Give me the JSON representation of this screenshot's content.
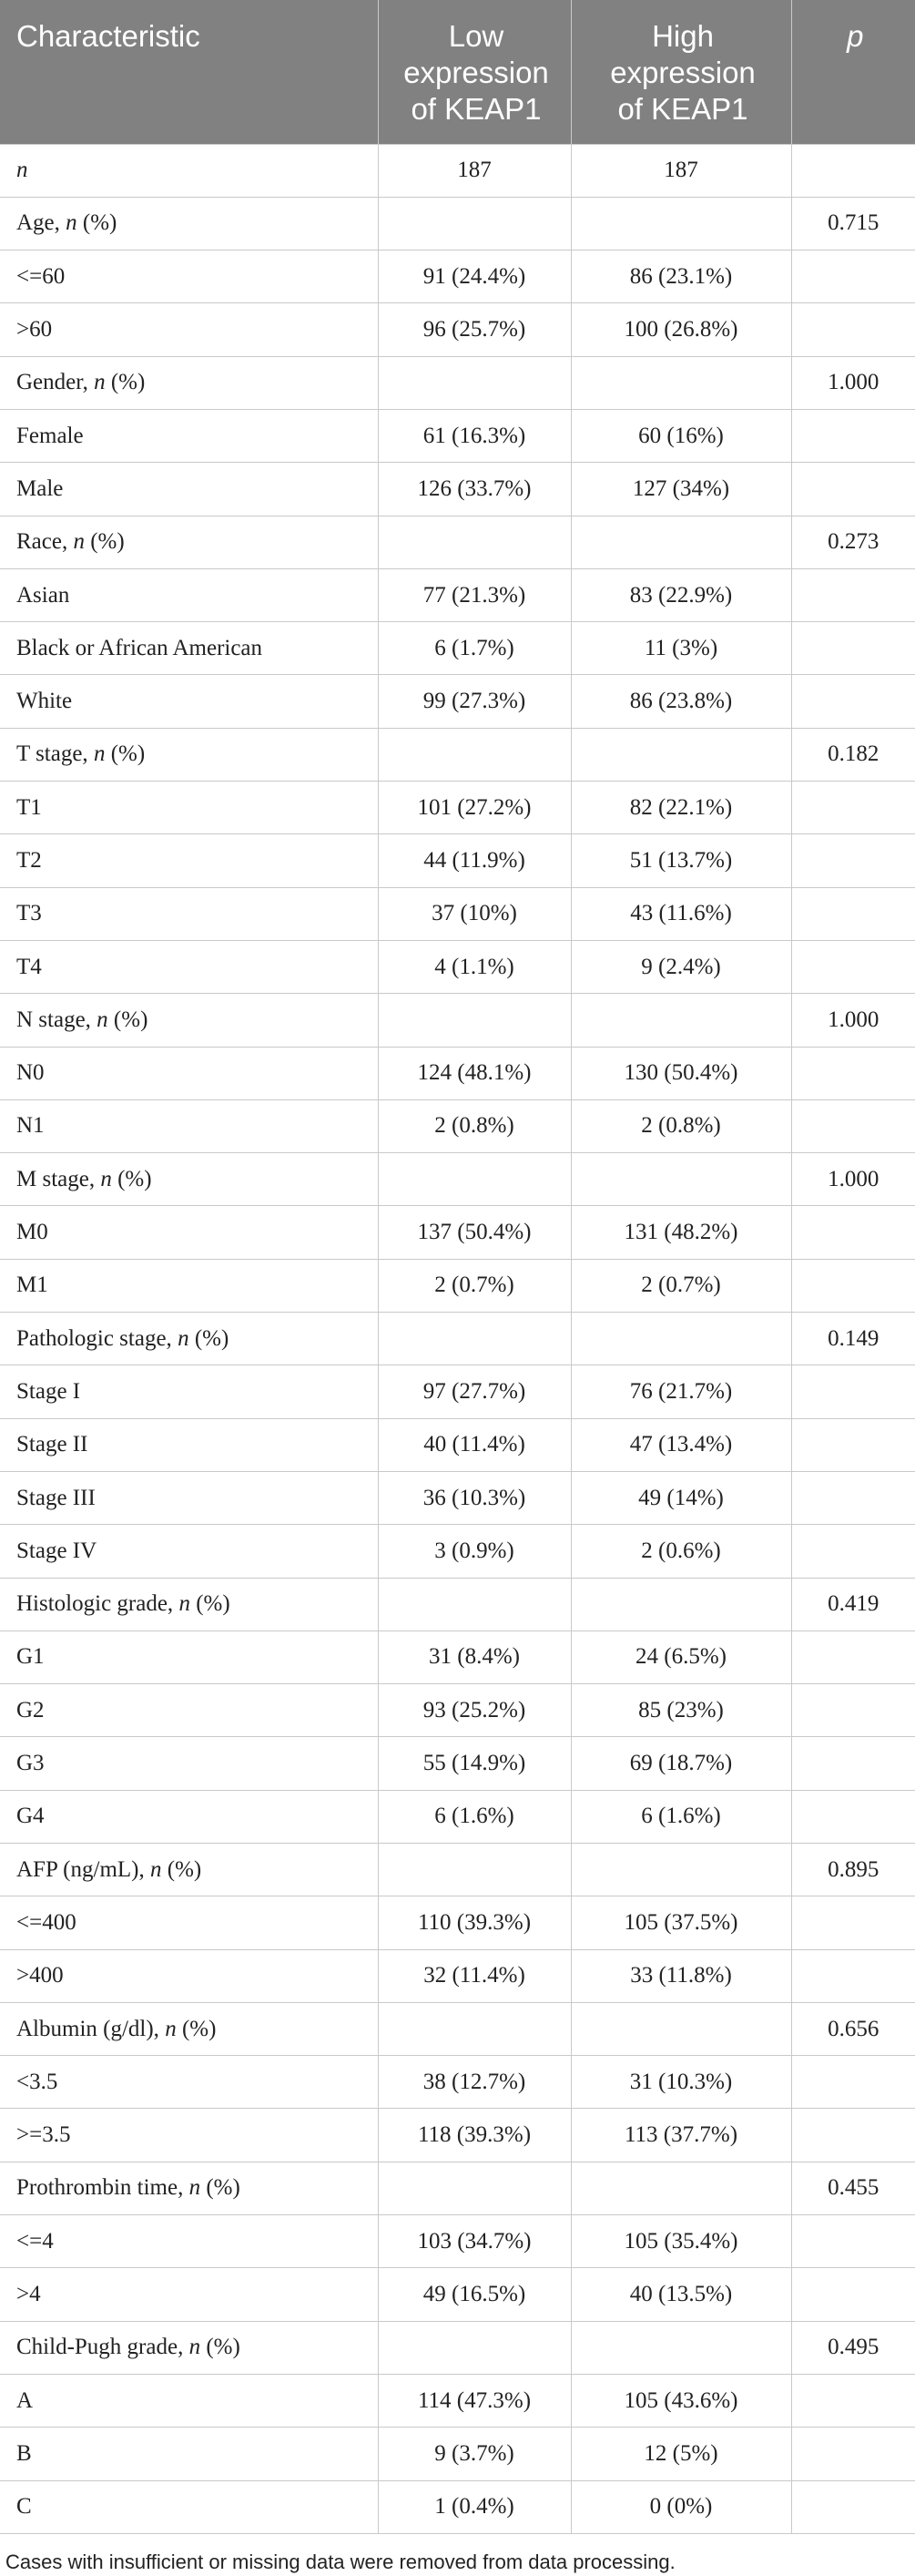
{
  "table": {
    "headers": [
      {
        "line1": "Characteristic",
        "line2": "",
        "line3": ""
      },
      {
        "line1": "Low",
        "line2": "expression",
        "line3": "of KEAP1"
      },
      {
        "line1": "High",
        "line2": "expression",
        "line3": "of KEAP1"
      },
      {
        "line1": "p",
        "line2": "",
        "line3": ""
      }
    ],
    "rows": [
      {
        "label": "",
        "label_italic": "n",
        "label_suffix": "",
        "low": "187",
        "high": "187",
        "p": ""
      },
      {
        "label": "Age, ",
        "label_italic": "n",
        "label_suffix": " (%)",
        "low": "",
        "high": "",
        "p": "0.715"
      },
      {
        "label": "<=60",
        "label_italic": "",
        "label_suffix": "",
        "low": "91 (24.4%)",
        "high": "86 (23.1%)",
        "p": ""
      },
      {
        "label": ">60",
        "label_italic": "",
        "label_suffix": "",
        "low": "96 (25.7%)",
        "high": "100 (26.8%)",
        "p": ""
      },
      {
        "label": "Gender, ",
        "label_italic": "n",
        "label_suffix": " (%)",
        "low": "",
        "high": "",
        "p": "1.000"
      },
      {
        "label": "Female",
        "label_italic": "",
        "label_suffix": "",
        "low": "61 (16.3%)",
        "high": "60 (16%)",
        "p": ""
      },
      {
        "label": "Male",
        "label_italic": "",
        "label_suffix": "",
        "low": "126 (33.7%)",
        "high": "127 (34%)",
        "p": ""
      },
      {
        "label": "Race, ",
        "label_italic": "n",
        "label_suffix": " (%)",
        "low": "",
        "high": "",
        "p": "0.273"
      },
      {
        "label": "Asian",
        "label_italic": "",
        "label_suffix": "",
        "low": "77 (21.3%)",
        "high": "83 (22.9%)",
        "p": ""
      },
      {
        "label": "Black or African American",
        "label_italic": "",
        "label_suffix": "",
        "low": "6 (1.7%)",
        "high": "11 (3%)",
        "p": ""
      },
      {
        "label": "White",
        "label_italic": "",
        "label_suffix": "",
        "low": "99 (27.3%)",
        "high": "86 (23.8%)",
        "p": ""
      },
      {
        "label": "T stage, ",
        "label_italic": "n",
        "label_suffix": " (%)",
        "low": "",
        "high": "",
        "p": "0.182"
      },
      {
        "label": "T1",
        "label_italic": "",
        "label_suffix": "",
        "low": "101 (27.2%)",
        "high": "82 (22.1%)",
        "p": ""
      },
      {
        "label": "T2",
        "label_italic": "",
        "label_suffix": "",
        "low": "44 (11.9%)",
        "high": "51 (13.7%)",
        "p": ""
      },
      {
        "label": "T3",
        "label_italic": "",
        "label_suffix": "",
        "low": "37 (10%)",
        "high": "43 (11.6%)",
        "p": ""
      },
      {
        "label": "T4",
        "label_italic": "",
        "label_suffix": "",
        "low": "4 (1.1%)",
        "high": "9 (2.4%)",
        "p": ""
      },
      {
        "label": "N stage, ",
        "label_italic": "n",
        "label_suffix": " (%)",
        "low": "",
        "high": "",
        "p": "1.000"
      },
      {
        "label": "N0",
        "label_italic": "",
        "label_suffix": "",
        "low": "124 (48.1%)",
        "high": "130 (50.4%)",
        "p": ""
      },
      {
        "label": "N1",
        "label_italic": "",
        "label_suffix": "",
        "low": "2 (0.8%)",
        "high": "2 (0.8%)",
        "p": ""
      },
      {
        "label": "M stage, ",
        "label_italic": "n",
        "label_suffix": " (%)",
        "low": "",
        "high": "",
        "p": "1.000"
      },
      {
        "label": "M0",
        "label_italic": "",
        "label_suffix": "",
        "low": "137 (50.4%)",
        "high": "131 (48.2%)",
        "p": ""
      },
      {
        "label": "M1",
        "label_italic": "",
        "label_suffix": "",
        "low": "2 (0.7%)",
        "high": "2 (0.7%)",
        "p": ""
      },
      {
        "label": "Pathologic stage, ",
        "label_italic": "n",
        "label_suffix": " (%)",
        "low": "",
        "high": "",
        "p": "0.149"
      },
      {
        "label": "Stage I",
        "label_italic": "",
        "label_suffix": "",
        "low": "97 (27.7%)",
        "high": "76 (21.7%)",
        "p": ""
      },
      {
        "label": "Stage II",
        "label_italic": "",
        "label_suffix": "",
        "low": "40 (11.4%)",
        "high": "47 (13.4%)",
        "p": ""
      },
      {
        "label": "Stage III",
        "label_italic": "",
        "label_suffix": "",
        "low": "36 (10.3%)",
        "high": "49 (14%)",
        "p": ""
      },
      {
        "label": "Stage IV",
        "label_italic": "",
        "label_suffix": "",
        "low": "3 (0.9%)",
        "high": "2 (0.6%)",
        "p": ""
      },
      {
        "label": "Histologic grade, ",
        "label_italic": "n",
        "label_suffix": " (%)",
        "low": "",
        "high": "",
        "p": "0.419"
      },
      {
        "label": "G1",
        "label_italic": "",
        "label_suffix": "",
        "low": "31 (8.4%)",
        "high": "24 (6.5%)",
        "p": ""
      },
      {
        "label": "G2",
        "label_italic": "",
        "label_suffix": "",
        "low": "93 (25.2%)",
        "high": "85 (23%)",
        "p": ""
      },
      {
        "label": "G3",
        "label_italic": "",
        "label_suffix": "",
        "low": "55 (14.9%)",
        "high": "69 (18.7%)",
        "p": ""
      },
      {
        "label": "G4",
        "label_italic": "",
        "label_suffix": "",
        "low": "6 (1.6%)",
        "high": "6 (1.6%)",
        "p": ""
      },
      {
        "label": "AFP (ng/mL), ",
        "label_italic": "n",
        "label_suffix": " (%)",
        "low": "",
        "high": "",
        "p": "0.895"
      },
      {
        "label": "<=400",
        "label_italic": "",
        "label_suffix": "",
        "low": "110 (39.3%)",
        "high": "105 (37.5%)",
        "p": ""
      },
      {
        "label": ">400",
        "label_italic": "",
        "label_suffix": "",
        "low": "32 (11.4%)",
        "high": "33 (11.8%)",
        "p": ""
      },
      {
        "label": "Albumin (g/dl), ",
        "label_italic": "n",
        "label_suffix": " (%)",
        "low": "",
        "high": "",
        "p": "0.656"
      },
      {
        "label": "<3.5",
        "label_italic": "",
        "label_suffix": "",
        "low": "38 (12.7%)",
        "high": "31 (10.3%)",
        "p": ""
      },
      {
        "label": ">=3.5",
        "label_italic": "",
        "label_suffix": "",
        "low": "118 (39.3%)",
        "high": "113 (37.7%)",
        "p": ""
      },
      {
        "label": "Prothrombin time, ",
        "label_italic": "n",
        "label_suffix": " (%)",
        "low": "",
        "high": "",
        "p": "0.455"
      },
      {
        "label": "<=4",
        "label_italic": "",
        "label_suffix": "",
        "low": "103 (34.7%)",
        "high": "105 (35.4%)",
        "p": ""
      },
      {
        "label": ">4",
        "label_italic": "",
        "label_suffix": "",
        "low": "49 (16.5%)",
        "high": "40 (13.5%)",
        "p": ""
      },
      {
        "label": "Child-Pugh grade, ",
        "label_italic": "n",
        "label_suffix": " (%)",
        "low": "",
        "high": "",
        "p": "0.495"
      },
      {
        "label": "A",
        "label_italic": "",
        "label_suffix": "",
        "low": "114 (47.3%)",
        "high": "105 (43.6%)",
        "p": ""
      },
      {
        "label": "B",
        "label_italic": "",
        "label_suffix": "",
        "low": "9 (3.7%)",
        "high": "12 (5%)",
        "p": ""
      },
      {
        "label": "C",
        "label_italic": "",
        "label_suffix": "",
        "low": "1 (0.4%)",
        "high": "0 (0%)",
        "p": ""
      }
    ]
  },
  "footnote": "Cases with insufficient or missing data were removed from data processing.",
  "colors": {
    "header_bg": "#818181",
    "header_text": "#ffffff",
    "border": "#c9c9c9"
  }
}
